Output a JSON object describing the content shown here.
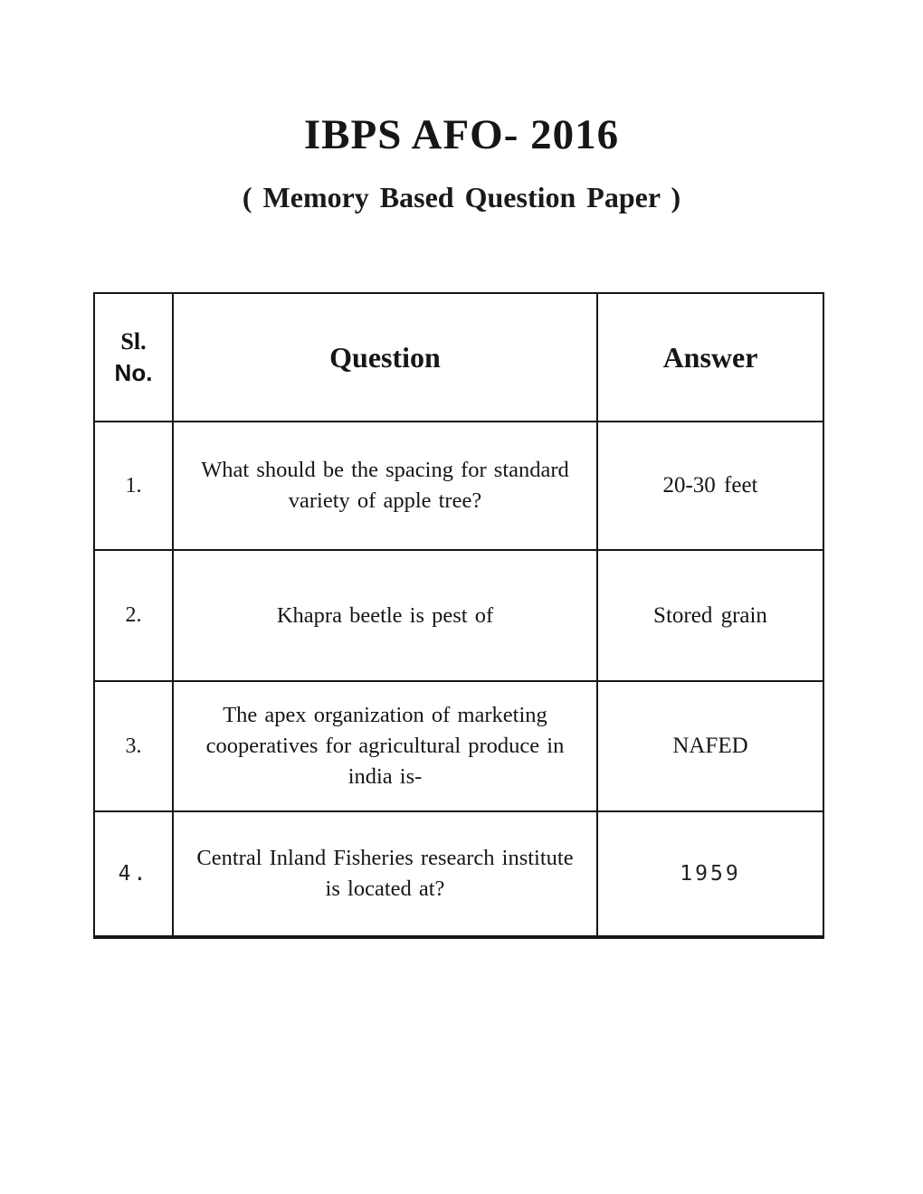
{
  "document": {
    "title": "IBPS AFO- 2016",
    "subtitle": "( Memory Based Question Paper )"
  },
  "table": {
    "headers": {
      "sl_line1": "Sl.",
      "sl_line2": "No.",
      "question": "Question",
      "answer": "Answer"
    },
    "rows": [
      {
        "sl": "1.",
        "question": "What should be the spacing for standard variety of apple tree?",
        "answer": "20-30 feet"
      },
      {
        "sl": "2.",
        "question": "Khapra beetle is pest of",
        "answer": "Stored grain"
      },
      {
        "sl": "3.",
        "question": "The apex organization of marketing cooperatives for agricultural produce in india is-",
        "answer": "NAFED"
      },
      {
        "sl": "4.",
        "question": "Central Inland Fisheries research institute is located at?",
        "answer": "1959"
      }
    ]
  },
  "colors": {
    "ink": "#161616",
    "paper": "#ffffff"
  }
}
